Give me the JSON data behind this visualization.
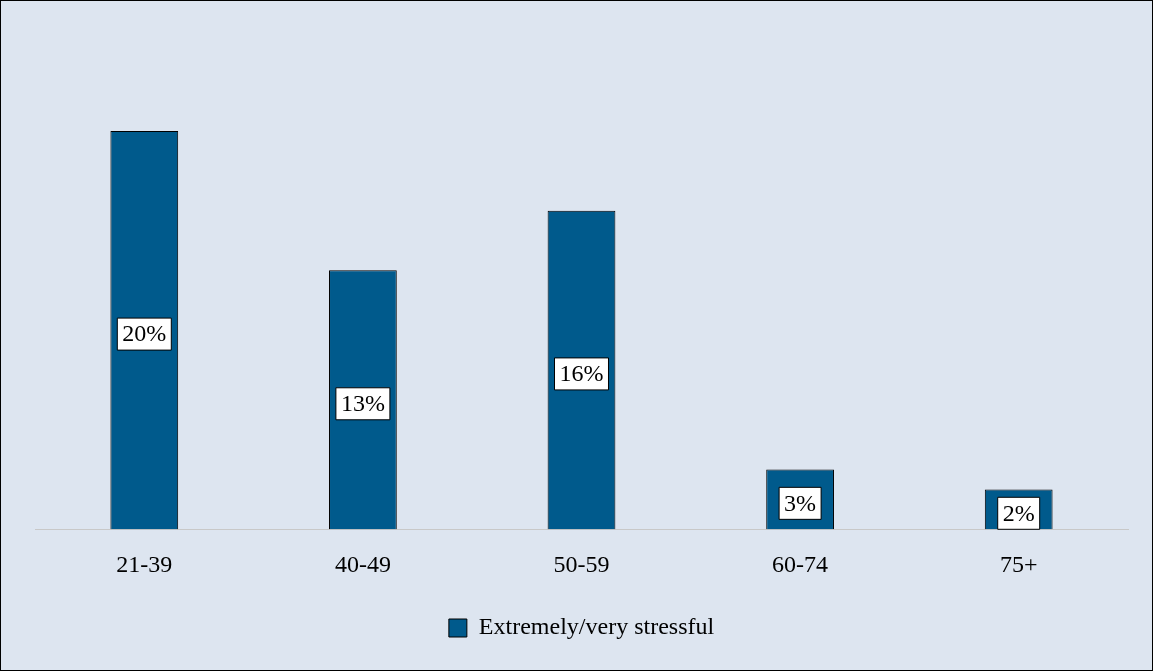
{
  "chart_data": {
    "type": "bar",
    "categories": [
      "21-39",
      "40-49",
      "50-59",
      "60-74",
      "75+"
    ],
    "series": [
      {
        "name": "Extremely/very stressful",
        "color": "#005a8c",
        "values": [
          20,
          13,
          16,
          3,
          2
        ],
        "value_labels": [
          "20%",
          "13%",
          "16%",
          "3%",
          "2%"
        ]
      }
    ],
    "legend": "bottom",
    "grid": false
  }
}
